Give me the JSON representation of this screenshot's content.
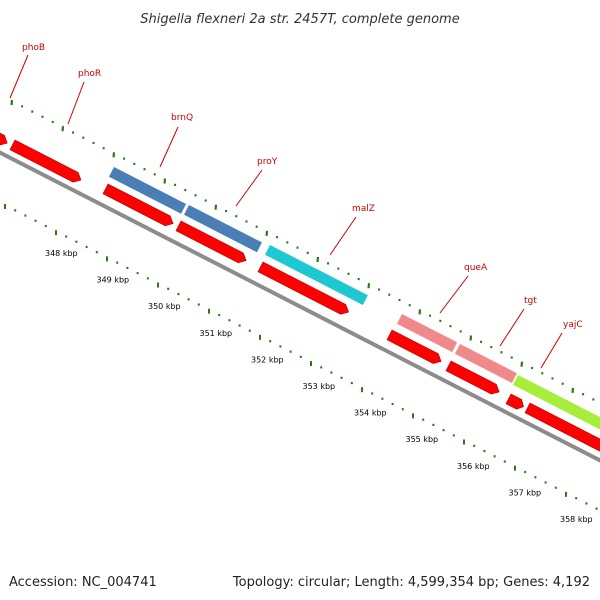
{
  "title": "Shigella flexneri 2a str. 2457T, complete genome",
  "footer": {
    "accession": "Accession: NC_004741",
    "summary": "Topology: circular; Length: 4,599,354 bp; Genes: 4,192"
  },
  "colors": {
    "cds": "#ff0000",
    "backbone": "#888888",
    "ticks": "#2a7a1a",
    "label_text": "#cc0000",
    "blue_gene": "#4a7fb5",
    "cyan_gene": "#1ec8d0",
    "pink_gene": "#f08a8a",
    "lime_gene": "#a6ee3a"
  },
  "genes": [
    {
      "name": "phoB",
      "color": "red"
    },
    {
      "name": "phoR",
      "color": "red"
    },
    {
      "name": "brnQ",
      "color": "blue"
    },
    {
      "name": "proY",
      "color": "blue"
    },
    {
      "name": "malZ",
      "color": "cyan"
    },
    {
      "name": "queA",
      "color": "pink"
    },
    {
      "name": "tgt",
      "color": "pink"
    },
    {
      "name": "yajC",
      "color": "lime"
    }
  ],
  "kbp_labels": [
    "348 kbp",
    "349 kbp",
    "350 kbp",
    "351 kbp",
    "352 kbp",
    "353 kbp",
    "354 kbp",
    "355 kbp",
    "356 kbp",
    "357 kbp",
    "358 kbp"
  ]
}
